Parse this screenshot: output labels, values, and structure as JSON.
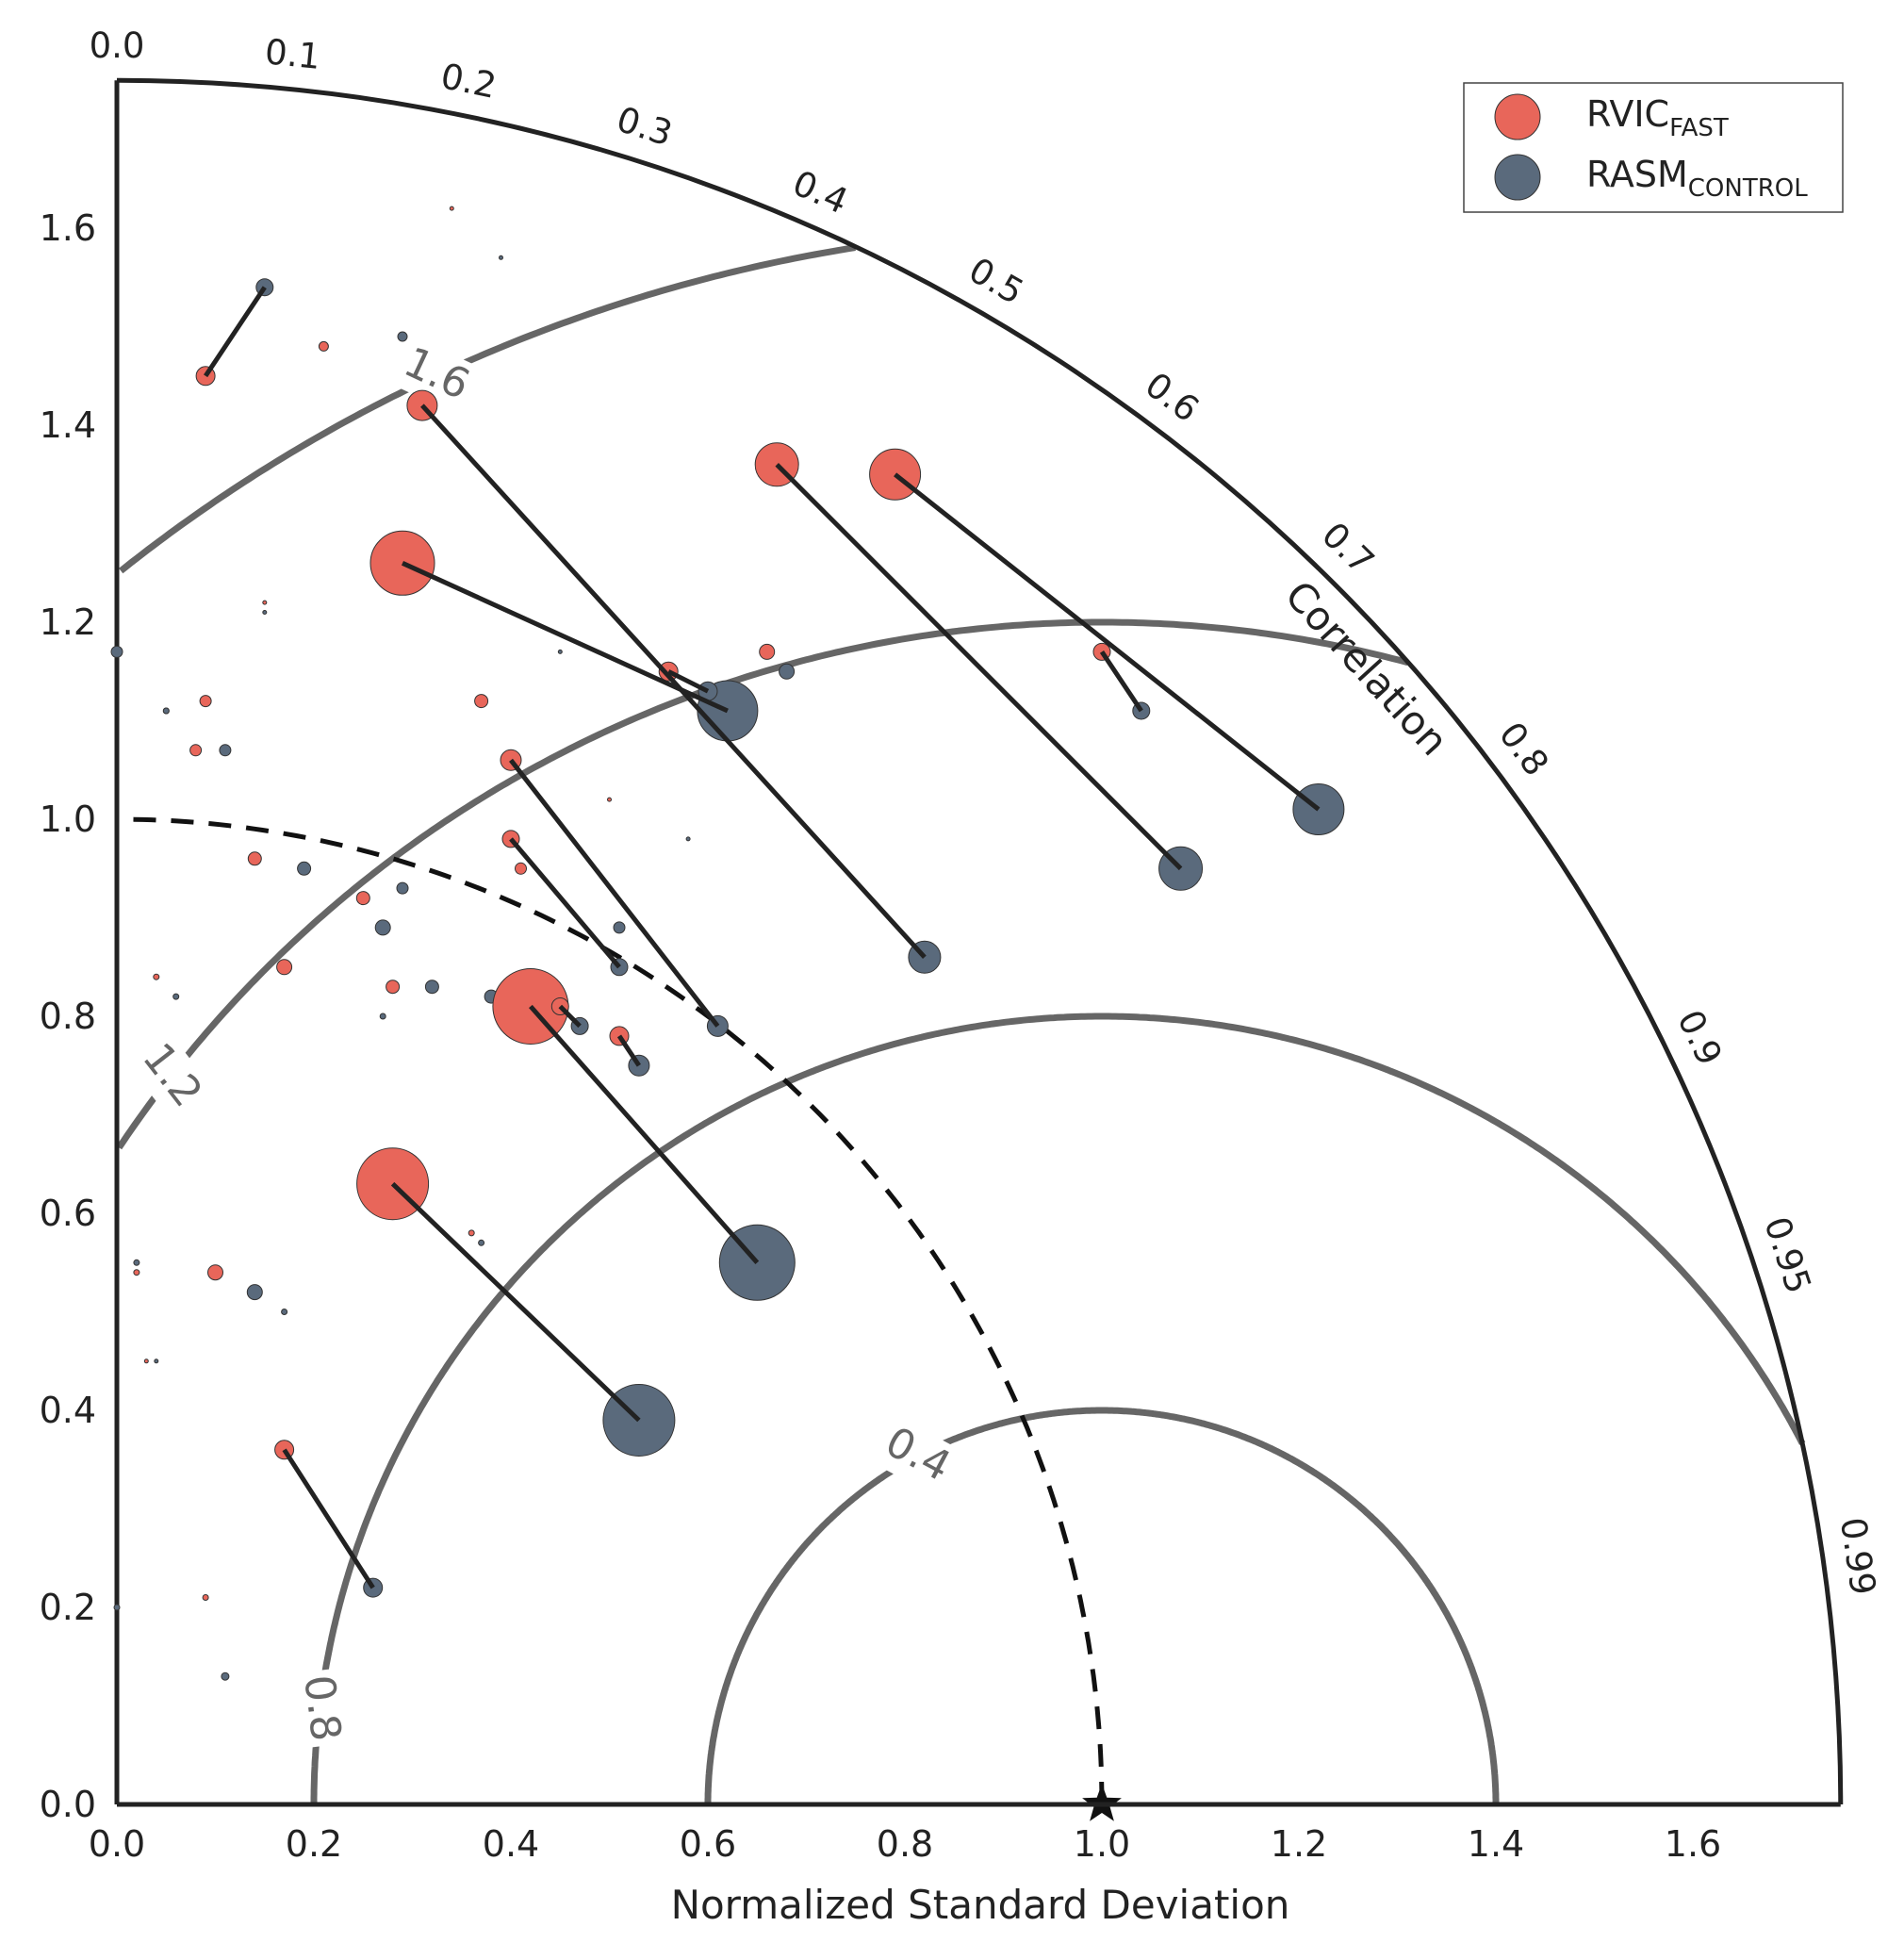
{
  "chart_data": {
    "type": "scatter",
    "xlabel": "Normalized Standard Deviation",
    "xlim": [
      0,
      1.75
    ],
    "ylim": [
      0,
      1.75
    ],
    "x_ticks": [
      "0.0",
      "0.2",
      "0.4",
      "0.6",
      "0.8",
      "1.0",
      "1.2",
      "1.4",
      "1.6"
    ],
    "y_ticks": [
      "0.0",
      "0.2",
      "0.4",
      "0.6",
      "0.8",
      "1.0",
      "1.2",
      "1.4",
      "1.6"
    ],
    "correlation_title": "Correlation",
    "correlation_ticks": [
      "0.0",
      "0.1",
      "0.2",
      "0.3",
      "0.4",
      "0.5",
      "0.6",
      "0.7",
      "0.8",
      "0.9",
      "0.95",
      "0.99"
    ],
    "rms_contours": [
      {
        "value": 0.4,
        "label": "0.4"
      },
      {
        "value": 0.8,
        "label": "0.8"
      },
      {
        "value": 1.2,
        "label": "1.2"
      },
      {
        "value": 1.6,
        "label": "1.6"
      }
    ],
    "reference": {
      "std": 1.0,
      "symbol": "star"
    },
    "colors": {
      "rvic": "#e8665a",
      "rasm": "#5a6a7c",
      "rms": "#666666",
      "axis": "#222222"
    },
    "legend": [
      {
        "main": "RVIC",
        "sub": "FAST",
        "color": "#e8665a"
      },
      {
        "main": "RASM",
        "sub": "CONTROL",
        "color": "#5a6a7c"
      }
    ],
    "pairs": [
      {
        "rvic": [
          0.09,
          1.45,
          10
        ],
        "rasm": [
          0.15,
          1.54,
          9
        ]
      },
      {
        "rvic": [
          0.31,
          1.42,
          16
        ],
        "rasm": [
          0.82,
          0.86,
          17
        ]
      },
      {
        "rvic": [
          0.29,
          1.26,
          34
        ],
        "rasm": [
          0.62,
          1.11,
          32
        ]
      },
      {
        "rvic": [
          0.67,
          1.36,
          23
        ],
        "rasm": [
          1.08,
          0.95,
          23
        ]
      },
      {
        "rvic": [
          0.79,
          1.35,
          27
        ],
        "rasm": [
          1.22,
          1.01,
          27
        ]
      },
      {
        "rvic": [
          1.0,
          1.17,
          9
        ],
        "rasm": [
          1.04,
          1.11,
          9
        ]
      },
      {
        "rvic": [
          0.56,
          1.15,
          10
        ],
        "rasm": [
          0.6,
          1.13,
          10
        ]
      },
      {
        "rvic": [
          0.4,
          1.06,
          11
        ],
        "rasm": [
          0.61,
          0.79,
          11
        ]
      },
      {
        "rvic": [
          0.4,
          0.98,
          9
        ],
        "rasm": [
          0.51,
          0.85,
          9
        ]
      },
      {
        "rvic": [
          0.42,
          0.81,
          40
        ],
        "rasm": [
          0.65,
          0.55,
          40
        ]
      },
      {
        "rvic": [
          0.45,
          0.81,
          9
        ],
        "rasm": [
          0.47,
          0.79,
          9
        ]
      },
      {
        "rvic": [
          0.51,
          0.78,
          10
        ],
        "rasm": [
          0.53,
          0.75,
          11
        ]
      },
      {
        "rvic": [
          0.28,
          0.63,
          38
        ],
        "rasm": [
          0.53,
          0.39,
          38
        ]
      },
      {
        "rvic": [
          0.17,
          0.36,
          10
        ],
        "rasm": [
          0.26,
          0.22,
          10
        ]
      }
    ],
    "rvic_points": [
      [
        0.34,
        1.62,
        2
      ],
      [
        0.21,
        1.48,
        5
      ],
      [
        0.66,
        1.17,
        8
      ],
      [
        0.09,
        1.12,
        6
      ],
      [
        0.05,
        1.11,
        3
      ],
      [
        0.37,
        1.12,
        7
      ],
      [
        0.08,
        1.07,
        6
      ],
      [
        0.5,
        1.02,
        2
      ],
      [
        0.14,
        0.96,
        7
      ],
      [
        0.41,
        0.95,
        6
      ],
      [
        0.25,
        0.92,
        7
      ],
      [
        0.17,
        0.85,
        8
      ],
      [
        0.28,
        0.83,
        7
      ],
      [
        0.04,
        0.84,
        3
      ],
      [
        0.1,
        0.54,
        8
      ],
      [
        0.02,
        0.54,
        3
      ],
      [
        0.36,
        0.58,
        3
      ],
      [
        0.03,
        0.45,
        2
      ],
      [
        0.09,
        0.21,
        3
      ],
      [
        0.11,
        0.13,
        3
      ],
      [
        0.15,
        1.22,
        2
      ]
    ],
    "rasm_points": [
      [
        0.39,
        1.57,
        2
      ],
      [
        0.29,
        1.49,
        5
      ],
      [
        0.68,
        1.15,
        8
      ],
      [
        0.0,
        1.17,
        6
      ],
      [
        0.05,
        1.11,
        3
      ],
      [
        0.11,
        1.07,
        6
      ],
      [
        0.19,
        0.95,
        7
      ],
      [
        0.29,
        0.93,
        6
      ],
      [
        0.51,
        0.89,
        6
      ],
      [
        0.27,
        0.89,
        8
      ],
      [
        0.32,
        0.83,
        7
      ],
      [
        0.38,
        0.82,
        7
      ],
      [
        0.06,
        0.82,
        3
      ],
      [
        0.27,
        0.8,
        3
      ],
      [
        0.14,
        0.52,
        8
      ],
      [
        0.17,
        0.5,
        3
      ],
      [
        0.02,
        0.55,
        3
      ],
      [
        0.37,
        0.57,
        3
      ],
      [
        0.04,
        0.45,
        2
      ],
      [
        0.11,
        0.13,
        4
      ],
      [
        0.0,
        0.2,
        3
      ],
      [
        0.58,
        0.98,
        2
      ],
      [
        0.45,
        1.17,
        2
      ],
      [
        0.15,
        1.21,
        2
      ]
    ]
  }
}
